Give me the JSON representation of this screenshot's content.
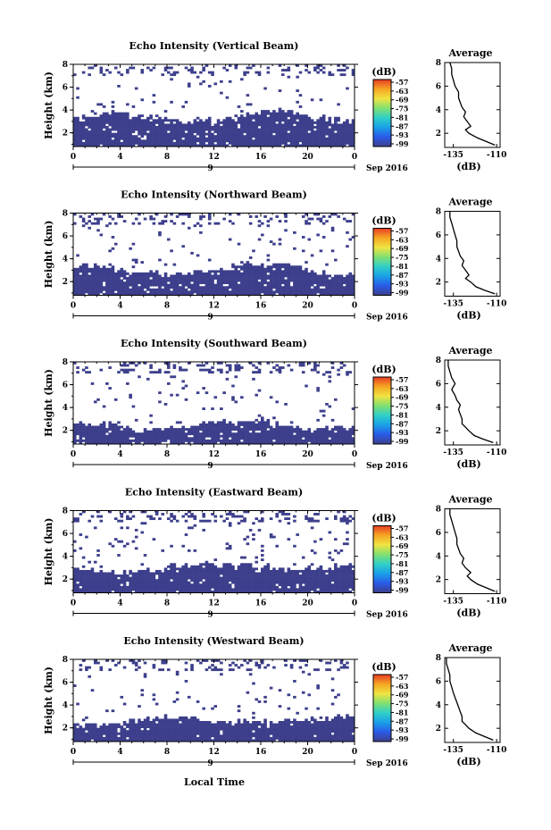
{
  "figure": {
    "xlabel": "Local Time",
    "date_label": "Sep 2016",
    "day_label": "9",
    "colorbar_unit": "(dB)",
    "colorbar_ticks": [
      "-57",
      "-63",
      "-69",
      "-75",
      "-81",
      "-87",
      "-93",
      "-99"
    ],
    "colorbar_colors": [
      "#e83c24",
      "#f5a623",
      "#f0e442",
      "#80e070",
      "#30d0c8",
      "#1aa0e8",
      "#2a5ae8",
      "#3d3f8c"
    ],
    "heatmap_color": "#3d3f8c"
  },
  "chart_data": [
    {
      "type": "heatmap",
      "title": "Echo Intensity (Vertical Beam)",
      "ylabel": "Height (km)",
      "x_ticks": [
        "0",
        "4",
        "8",
        "12",
        "16",
        "20",
        "0"
      ],
      "xlim": [
        0,
        24
      ],
      "y_ticks": [
        "2",
        "4",
        "6",
        "8"
      ],
      "ylim": [
        0.8,
        8
      ],
      "layer_top_km": 3.3,
      "profile": {
        "title": "Average",
        "xlabel": "(dB)",
        "x_ticks": [
          "-135",
          "-110"
        ],
        "xlim": [
          -140,
          -108
        ],
        "y_ticks": [
          "2",
          "4",
          "6",
          "8"
        ],
        "height_km": [
          1.0,
          1.3,
          1.6,
          2.0,
          2.3,
          2.6,
          3.0,
          3.4,
          3.8,
          4.2,
          4.6,
          5.0,
          5.5,
          6.0,
          6.5,
          7.0,
          7.5,
          8.0
        ],
        "db": [
          -111,
          -116,
          -121,
          -126,
          -128,
          -125,
          -127,
          -129,
          -128,
          -130,
          -131,
          -132,
          -132,
          -134,
          -135,
          -136,
          -136,
          -137
        ]
      }
    },
    {
      "type": "heatmap",
      "title": "Echo Intensity (Northward Beam)",
      "ylabel": "Height (km)",
      "x_ticks": [
        "0",
        "4",
        "8",
        "12",
        "16",
        "20",
        "0"
      ],
      "xlim": [
        0,
        24
      ],
      "y_ticks": [
        "2",
        "4",
        "6",
        "8"
      ],
      "ylim": [
        0.8,
        8
      ],
      "layer_top_km": 3.0,
      "profile": {
        "title": "Average",
        "xlabel": "(dB)",
        "x_ticks": [
          "-135",
          "-110"
        ],
        "xlim": [
          -140,
          -108
        ],
        "y_ticks": [
          "2",
          "4",
          "6",
          "8"
        ],
        "height_km": [
          1.0,
          1.3,
          1.6,
          2.0,
          2.3,
          2.6,
          3.0,
          3.4,
          3.8,
          4.2,
          4.6,
          5.0,
          5.5,
          6.0,
          6.5,
          7.0,
          7.5,
          8.0
        ],
        "db": [
          -111,
          -117,
          -122,
          -125,
          -128,
          -126,
          -128,
          -130,
          -129,
          -131,
          -132,
          -133,
          -133,
          -134,
          -135,
          -136,
          -137,
          -137
        ]
      }
    },
    {
      "type": "heatmap",
      "title": "Echo Intensity (Southward Beam)",
      "ylabel": "Height (km)",
      "x_ticks": [
        "0",
        "4",
        "8",
        "12",
        "16",
        "20",
        "0"
      ],
      "xlim": [
        0,
        24
      ],
      "y_ticks": [
        "2",
        "4",
        "6",
        "8"
      ],
      "ylim": [
        0.8,
        8
      ],
      "layer_top_km": 2.4,
      "profile": {
        "title": "Average",
        "xlabel": "(dB)",
        "x_ticks": [
          "-135",
          "-110"
        ],
        "xlim": [
          -140,
          -108
        ],
        "y_ticks": [
          "2",
          "4",
          "6",
          "8"
        ],
        "height_km": [
          1.0,
          1.3,
          1.6,
          2.0,
          2.3,
          2.6,
          3.0,
          3.4,
          3.8,
          4.2,
          4.6,
          5.0,
          5.5,
          6.0,
          6.5,
          7.0,
          7.5,
          8.0
        ],
        "db": [
          -112,
          -118,
          -123,
          -126,
          -128,
          -130,
          -130,
          -131,
          -132,
          -131,
          -133,
          -134,
          -136,
          -134,
          -136,
          -137,
          -138,
          -138
        ]
      }
    },
    {
      "type": "heatmap",
      "title": "Echo Intensity (Eastward Beam)",
      "ylabel": "Height (km)",
      "x_ticks": [
        "0",
        "4",
        "8",
        "12",
        "16",
        "20",
        "0"
      ],
      "xlim": [
        0,
        24
      ],
      "y_ticks": [
        "2",
        "4",
        "6",
        "8"
      ],
      "ylim": [
        0.8,
        8
      ],
      "layer_top_km": 3.0,
      "profile": {
        "title": "Average",
        "xlabel": "(dB)",
        "x_ticks": [
          "-135",
          "-110"
        ],
        "xlim": [
          -140,
          -108
        ],
        "y_ticks": [
          "2",
          "4",
          "6",
          "8"
        ],
        "height_km": [
          1.0,
          1.3,
          1.6,
          2.0,
          2.3,
          2.6,
          3.0,
          3.4,
          3.8,
          4.2,
          4.6,
          5.0,
          5.5,
          6.0,
          6.5,
          7.0,
          7.5,
          8.0
        ],
        "db": [
          -111,
          -116,
          -121,
          -125,
          -127,
          -125,
          -128,
          -130,
          -129,
          -131,
          -132,
          -133,
          -133,
          -134,
          -135,
          -136,
          -137,
          -137
        ]
      }
    },
    {
      "type": "heatmap",
      "title": "Echo Intensity (Westward Beam)",
      "ylabel": "Height (km)",
      "x_ticks": [
        "0",
        "4",
        "8",
        "12",
        "16",
        "20",
        "0"
      ],
      "xlim": [
        0,
        24
      ],
      "y_ticks": [
        "2",
        "4",
        "6",
        "8"
      ],
      "ylim": [
        0.8,
        8
      ],
      "layer_top_km": 2.6,
      "profile": {
        "title": "Average",
        "xlabel": "(dB)",
        "x_ticks": [
          "-135",
          "-110"
        ],
        "xlim": [
          -140,
          -108
        ],
        "y_ticks": [
          "2",
          "4",
          "6",
          "8"
        ],
        "height_km": [
          1.0,
          1.3,
          1.6,
          2.0,
          2.3,
          2.6,
          3.0,
          3.4,
          3.8,
          4.2,
          4.6,
          5.0,
          5.5,
          6.0,
          6.5,
          7.0,
          7.5,
          8.0
        ],
        "db": [
          -112,
          -117,
          -122,
          -126,
          -128,
          -130,
          -130,
          -131,
          -132,
          -133,
          -134,
          -135,
          -136,
          -137,
          -137,
          -138,
          -139,
          -139
        ]
      }
    }
  ]
}
